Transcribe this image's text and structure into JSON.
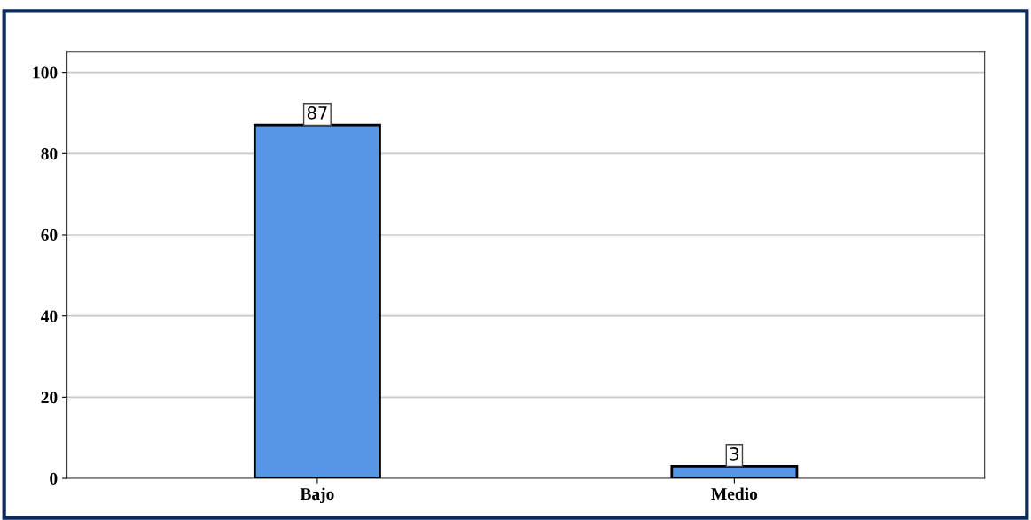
{
  "chart_data": {
    "type": "bar",
    "categories": [
      "Bajo",
      "Medio"
    ],
    "values": [
      87,
      3
    ],
    "color": "#5596e6",
    "ylim": [
      0,
      105
    ],
    "yticks": [
      0,
      20,
      40,
      60,
      80,
      100
    ],
    "grid": "y",
    "data_labels": true
  }
}
